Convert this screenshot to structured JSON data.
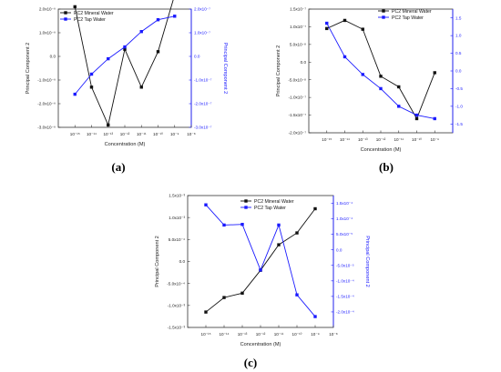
{
  "labels": {
    "a": "(a)",
    "b": "(b)",
    "c": "(c)"
  },
  "chart_data": [
    {
      "panel": "a",
      "type": "line",
      "xlabel": "Concentration (M)",
      "ylabel": "Principal Component 2",
      "y2label": "Principal Component 2",
      "x": [
        1e-15,
        1e-14,
        1e-13,
        1e-12,
        1e-11,
        1e-10,
        1e-09
      ],
      "xlim": [
        1e-16,
        1e-08
      ],
      "xticks": [
        1e-15,
        1e-14,
        1e-13,
        1e-12,
        1e-11,
        1e-10,
        1e-09,
        1e-08
      ],
      "xtick_labels": [
        "10⁻¹⁵",
        "10⁻¹⁴",
        "10⁻¹³",
        "10⁻¹²",
        "10⁻¹¹",
        "10⁻¹⁰",
        "10⁻⁹",
        "10⁻⁸"
      ],
      "ylim": [
        -3e-09,
        2e-09
      ],
      "yticks": [
        -3e-09,
        -2e-09,
        -1e-09,
        0,
        1e-09,
        2e-09
      ],
      "ytick_labels": [
        "-3.0x10⁻⁹",
        "-2.0x10⁻⁹",
        "-1.0x10⁻⁹",
        "0.0",
        "1.0x10⁻⁹",
        "2.0x10⁻⁹"
      ],
      "y2lim": [
        -3e-07,
        2e-07
      ],
      "y2ticks": [
        -3e-07,
        -2e-07,
        -1e-07,
        0,
        1e-07,
        2e-07
      ],
      "y2tick_labels": [
        "-3.0x10⁻⁷",
        "-2.0x10⁻⁷",
        "-1.0x10⁻⁷",
        "0.0",
        "1.0x10⁻⁷",
        "2.0x10⁻⁷"
      ],
      "legend_placement": "top-left",
      "series": [
        {
          "name": "PC2 Mineral Water",
          "axis": "left",
          "color": "#111111",
          "marker": "square",
          "values": [
            2.1e-09,
            -1.3e-09,
            -2.9e-09,
            3e-10,
            -1.3e-09,
            2e-10,
            2.6e-09
          ]
        },
        {
          "name": "PC2 Tap Water",
          "axis": "right",
          "color": "#1a1aff",
          "marker": "square",
          "values": [
            -1.6e-07,
            -7.5e-08,
            -1e-08,
            4e-08,
            1.05e-07,
            1.55e-07,
            1.7e-07
          ]
        }
      ]
    },
    {
      "panel": "b",
      "type": "line",
      "xlabel": "Concentration (M)",
      "ylabel": "Principal Component 2",
      "y2label": "",
      "x": [
        1e-15,
        1e-14,
        1e-13,
        1e-12,
        1e-11,
        1e-10,
        1e-09
      ],
      "xlim": [
        1e-16,
        1e-08
      ],
      "xticks": [
        1e-15,
        1e-14,
        1e-13,
        1e-12,
        1e-11,
        1e-10,
        1e-09
      ],
      "xtick_labels": [
        "10⁻¹⁵",
        "10⁻¹⁴",
        "10⁻¹³",
        "10⁻¹²",
        "10⁻¹¹",
        "10⁻¹⁰",
        "10⁻⁹"
      ],
      "ylim": [
        -2e-07,
        1.5e-07
      ],
      "yticks": [
        -2e-07,
        -1.5e-07,
        -1e-07,
        -5e-08,
        0,
        5e-08,
        1e-07,
        1.5e-07
      ],
      "ytick_labels": [
        "-2.0x10⁻⁷",
        "-1.5x10⁻⁷",
        "-1.0x10⁻⁷",
        "-5.0x10⁻⁸",
        "0.0",
        "5.0x10⁻⁸",
        "1.0x10⁻⁷",
        "1.5x10⁻⁷"
      ],
      "y2lim": [
        -1.75,
        1.75
      ],
      "y2ticks": [
        -1.5,
        -1.0,
        -0.5,
        0.0,
        0.5,
        1.0,
        1.5
      ],
      "y2tick_labels": [
        "-1.5",
        "-1.0",
        "-0.5",
        "0.0",
        "0.5",
        "1.0",
        "1.5"
      ],
      "legend_placement": "top-right",
      "series": [
        {
          "name": "PC2 Mineral Water",
          "axis": "left",
          "color": "#111111",
          "marker": "square",
          "values": [
            9.5e-08,
            1.18e-07,
            9.3e-08,
            -4e-08,
            -7e-08,
            -1.6e-07,
            -3e-08
          ]
        },
        {
          "name": "PC2 Tap Water",
          "axis": "right",
          "color": "#1a1aff",
          "marker": "square",
          "values": [
            1.35,
            0.4,
            -0.1,
            -0.5,
            -1.0,
            -1.25,
            -1.35
          ]
        }
      ]
    },
    {
      "panel": "c",
      "type": "line",
      "xlabel": "Concentration (M)",
      "ylabel": "Principal Component 2",
      "y2label": "Principal Component 2",
      "x": [
        1e-15,
        1e-14,
        1e-13,
        1e-12,
        1e-11,
        1e-10,
        1e-09
      ],
      "xlim": [
        1e-16,
        1e-08
      ],
      "xticks": [
        1e-15,
        1e-14,
        1e-13,
        1e-12,
        1e-11,
        1e-10,
        1e-09,
        1e-08
      ],
      "xtick_labels": [
        "10⁻¹⁵",
        "10⁻¹⁴",
        "10⁻¹³",
        "10⁻¹²",
        "10⁻¹¹",
        "10⁻¹⁰",
        "10⁻⁹",
        "10⁻⁸"
      ],
      "ylim": [
        -0.0015,
        0.0015
      ],
      "yticks": [
        -0.0015,
        -0.001,
        -0.0005,
        0,
        0.0005,
        0.001,
        0.0015
      ],
      "ytick_labels": [
        "-1.5x10⁻³",
        "-1.0x10⁻³",
        "-5.0x10⁻⁴",
        "0.0",
        "5.0x10⁻⁴",
        "1.0x10⁻³",
        "1.5x10⁻³"
      ],
      "y2lim": [
        -0.00025,
        0.000175
      ],
      "y2ticks": [
        -0.0002,
        -0.00015,
        -0.0001,
        -5e-05,
        0,
        5e-05,
        0.0001,
        0.00015
      ],
      "y2tick_labels": [
        "-2.0x10⁻⁴",
        "-1.5x10⁻⁴",
        "-1.0x10⁻⁴",
        "-5.0x10⁻⁵",
        "0.0",
        "5.0x10⁻⁵",
        "1.0x10⁻⁴",
        "1.5x10⁻⁴"
      ],
      "legend_placement": "top-center",
      "series": [
        {
          "name": "PC2 Mineral Water",
          "axis": "left",
          "color": "#111111",
          "marker": "square",
          "values": [
            -0.00115,
            -0.00082,
            -0.00072,
            -0.0002,
            0.00038,
            0.00065,
            0.0012
          ]
        },
        {
          "name": "PC2 Tap Water",
          "axis": "right",
          "color": "#1a1aff",
          "marker": "square",
          "values": [
            0.000145,
            8e-05,
            8.2e-05,
            -6.5e-05,
            8e-05,
            -0.000145,
            -0.000215
          ]
        }
      ]
    }
  ]
}
